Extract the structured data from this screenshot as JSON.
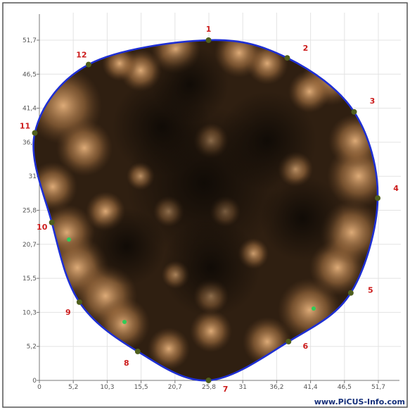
{
  "x_ticks": [
    "0",
    "5,2",
    "10,3",
    "15,5",
    "20,7",
    "25,8",
    "31",
    "36,2",
    "41,4",
    "46,5",
    "51,7"
  ],
  "y_ticks": [
    "0",
    "5,2",
    "10,3",
    "15,5",
    "20,7",
    "25,8",
    "31",
    "36,2",
    "41,4",
    "46,5",
    "51,7"
  ],
  "points": [
    {
      "label": "1",
      "x": 25.8,
      "y": 51.7
    },
    {
      "label": "2",
      "x": 37.8,
      "y": 49.0
    },
    {
      "label": "3",
      "x": 48.0,
      "y": 40.8
    },
    {
      "label": "4",
      "x": 51.6,
      "y": 27.7
    },
    {
      "label": "5",
      "x": 47.5,
      "y": 13.3
    },
    {
      "label": "6",
      "x": 38.0,
      "y": 5.9
    },
    {
      "label": "7",
      "x": 25.8,
      "y": 0.0
    },
    {
      "label": "8",
      "x": 15.0,
      "y": 4.4
    },
    {
      "label": "9",
      "x": 6.1,
      "y": 11.9
    },
    {
      "label": "10",
      "x": 1.9,
      "y": 24.0
    },
    {
      "label": "11",
      "x": -0.7,
      "y": 37.6
    },
    {
      "label": "12",
      "x": 7.5,
      "y": 48.0
    }
  ],
  "watermark": "www.PiCUS-Info.com",
  "colors": {
    "outline": "#1e2fd4",
    "marker": "#4f5f1e",
    "label": "#cc1b1b",
    "green_dot": "#2ecc57"
  }
}
